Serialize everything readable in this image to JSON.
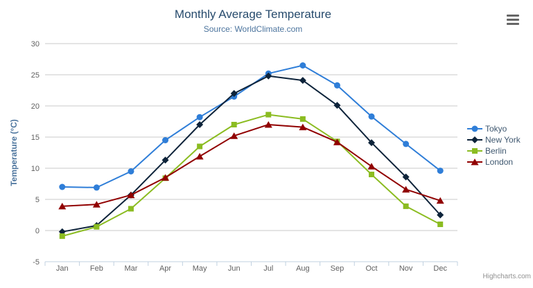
{
  "chart_data": {
    "type": "line",
    "title": "Monthly Average Temperature",
    "subtitle": "Source: WorldClimate.com",
    "categories": [
      "Jan",
      "Feb",
      "Mar",
      "Apr",
      "May",
      "Jun",
      "Jul",
      "Aug",
      "Sep",
      "Oct",
      "Nov",
      "Dec"
    ],
    "xlabel": "",
    "ylabel": "Temperature (°C)",
    "ylim": [
      -5,
      30
    ],
    "yticks": [
      -5,
      0,
      5,
      10,
      15,
      20,
      25,
      30
    ],
    "grid": true,
    "legend_position": "right",
    "series": [
      {
        "name": "Tokyo",
        "color": "#2f7ed8",
        "marker": "circle",
        "values": [
          7.0,
          6.9,
          9.5,
          14.5,
          18.2,
          21.5,
          25.2,
          26.5,
          23.3,
          18.3,
          13.9,
          9.6
        ]
      },
      {
        "name": "New York",
        "color": "#0d233a",
        "marker": "diamond",
        "values": [
          -0.2,
          0.8,
          5.7,
          11.3,
          17.0,
          22.0,
          24.8,
          24.1,
          20.1,
          14.1,
          8.6,
          2.5
        ]
      },
      {
        "name": "Berlin",
        "color": "#8bbc21",
        "marker": "square",
        "values": [
          -0.9,
          0.6,
          3.5,
          8.4,
          13.5,
          17.0,
          18.6,
          17.9,
          14.3,
          9.0,
          3.9,
          1.0
        ]
      },
      {
        "name": "London",
        "color": "#910000",
        "marker": "triangle",
        "values": [
          3.9,
          4.2,
          5.7,
          8.5,
          11.9,
          15.2,
          17.0,
          16.6,
          14.2,
          10.3,
          6.6,
          4.8
        ]
      }
    ],
    "credits": "Highcharts.com"
  },
  "ui": {
    "export_menu_icon": "hamburger-menu"
  },
  "colors": {
    "title": "#274b6d",
    "subtitle": "#4d759e",
    "axis_title": "#4d759e",
    "axis_labels": "#606060",
    "gridline": "#c8c8c8",
    "axis_line": "#c0d0e0",
    "legend_text": "#3e576f",
    "credits": "#909090",
    "background": "#ffffff"
  }
}
